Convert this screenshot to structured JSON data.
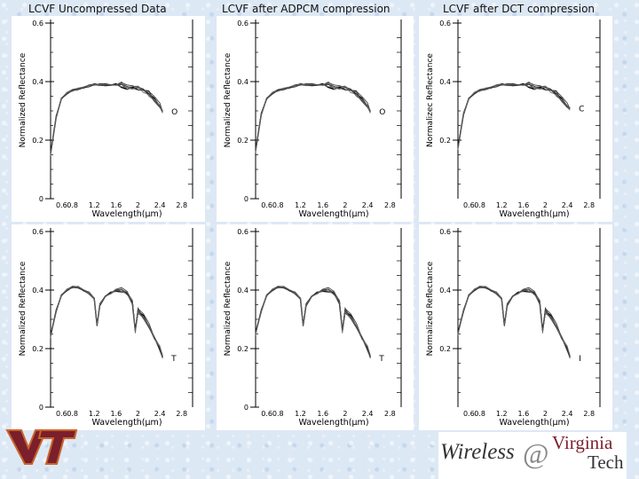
{
  "titles": {
    "col1": "LCVF Uncompressed Data",
    "col2": "LCVF after ADPCM compression",
    "col3": "LCVF after DCT compression"
  },
  "branding": {
    "left_logo": "VT",
    "right_logo": {
      "wireless": "Wireless",
      "at": "@",
      "virginia": "Virginia",
      "tech": "Tech"
    }
  },
  "colors": {
    "logo_maroon": "#7a1f2b",
    "logo_orange": "#c8642a",
    "curve": "#000000"
  },
  "chart_data": [
    {
      "type": "line",
      "name": "c1-top",
      "title": "LCVF Uncompressed Data",
      "xlabel": "Wavelength(μm)",
      "ylabel": "Normalized Reflectance",
      "xlim": [
        0.4,
        3.0
      ],
      "ylim": [
        0,
        0.6
      ],
      "grid": false,
      "xticks": [
        "0.8",
        "1.2",
        "1.6",
        "2",
        "2.4",
        "2.8"
      ],
      "yticks": [
        "0",
        "0.2",
        "0.4",
        "0.6"
      ],
      "extra_xticks": [
        "0.6"
      ],
      "annotation": "O",
      "shape": "flat",
      "series": [
        {
          "x": [
            0.4,
            0.5,
            0.6,
            0.7,
            0.8,
            0.9,
            1.0,
            1.1,
            1.2,
            1.3,
            1.4,
            1.5,
            1.6,
            1.7,
            1.8,
            1.9,
            2.0,
            2.1,
            2.2,
            2.3,
            2.4,
            2.45
          ],
          "y": [
            0.15,
            0.28,
            0.34,
            0.36,
            0.37,
            0.375,
            0.38,
            0.385,
            0.39,
            0.39,
            0.39,
            0.39,
            0.39,
            0.39,
            0.38,
            0.38,
            0.38,
            0.37,
            0.36,
            0.34,
            0.32,
            0.3
          ]
        }
      ]
    },
    {
      "type": "line",
      "name": "c2-top",
      "title": "LCVF after ADPCM compression",
      "xlabel": "Wavelength(μm)",
      "ylabel": "Normalized Reflectance",
      "xlim": [
        0.4,
        3.0
      ],
      "ylim": [
        0,
        0.6
      ],
      "grid": false,
      "xticks": [
        "0.8",
        "1.2",
        "1.6",
        "2",
        "2.4",
        "2.8"
      ],
      "yticks": [
        "0",
        "0.2",
        "0.4",
        "0.6"
      ],
      "extra_xticks": [
        "0.6"
      ],
      "annotation": "O",
      "shape": "flat",
      "series": [
        {
          "x": [
            0.4,
            0.5,
            0.6,
            0.7,
            0.8,
            0.9,
            1.0,
            1.1,
            1.2,
            1.3,
            1.4,
            1.5,
            1.6,
            1.7,
            1.8,
            1.9,
            2.0,
            2.1,
            2.2,
            2.3,
            2.4,
            2.45
          ],
          "y": [
            0.16,
            0.29,
            0.34,
            0.36,
            0.37,
            0.375,
            0.38,
            0.385,
            0.39,
            0.39,
            0.39,
            0.39,
            0.39,
            0.39,
            0.38,
            0.38,
            0.38,
            0.37,
            0.36,
            0.34,
            0.32,
            0.3
          ]
        }
      ]
    },
    {
      "type": "line",
      "name": "c3-top",
      "title": "LCVF after DCT compression",
      "xlabel": "Wavelength(μm)",
      "ylabel": "Normalizec Reflectance",
      "xlim": [
        0.4,
        3.0
      ],
      "ylim": [
        0,
        0.6
      ],
      "grid": false,
      "xticks": [
        "0.8",
        "1.2",
        "1.6",
        "2",
        "2.4",
        "2.8"
      ],
      "yticks": [
        "0.2",
        "0.4",
        "0.6"
      ],
      "extra_xticks": [
        "0.6"
      ],
      "annotation": "C",
      "shape": "flat",
      "series": [
        {
          "x": [
            0.4,
            0.5,
            0.6,
            0.7,
            0.8,
            0.9,
            1.0,
            1.1,
            1.2,
            1.3,
            1.4,
            1.5,
            1.6,
            1.7,
            1.8,
            1.9,
            2.0,
            2.1,
            2.2,
            2.3,
            2.4,
            2.45
          ],
          "y": [
            0.17,
            0.29,
            0.34,
            0.36,
            0.37,
            0.375,
            0.38,
            0.385,
            0.39,
            0.39,
            0.39,
            0.39,
            0.39,
            0.39,
            0.38,
            0.38,
            0.38,
            0.37,
            0.36,
            0.34,
            0.32,
            0.31
          ]
        }
      ]
    },
    {
      "type": "line",
      "name": "c1-bottom",
      "xlabel": "Wavelength(μm)",
      "ylabel": "Normalized Reflectance",
      "xlim": [
        0.4,
        3.0
      ],
      "ylim": [
        0,
        0.6
      ],
      "grid": false,
      "xticks": [
        "0.8",
        "1.2",
        "1.6",
        "2",
        "2.4",
        "2.8"
      ],
      "yticks": [
        "0",
        "0.2",
        "0.4",
        "0.6"
      ],
      "extra_xticks": [
        "0.6"
      ],
      "annotation": "T",
      "shape": "bands",
      "series": [
        {
          "x": [
            0.4,
            0.5,
            0.6,
            0.7,
            0.8,
            0.9,
            1.0,
            1.1,
            1.2,
            1.25,
            1.3,
            1.4,
            1.5,
            1.6,
            1.7,
            1.8,
            1.9,
            1.95,
            2.0,
            2.1,
            2.2,
            2.3,
            2.4,
            2.45
          ],
          "y": [
            0.24,
            0.33,
            0.38,
            0.4,
            0.41,
            0.41,
            0.4,
            0.39,
            0.37,
            0.28,
            0.35,
            0.38,
            0.39,
            0.4,
            0.4,
            0.39,
            0.36,
            0.26,
            0.33,
            0.31,
            0.28,
            0.24,
            0.2,
            0.17
          ]
        }
      ]
    },
    {
      "type": "line",
      "name": "c2-bottom",
      "xlabel": "Wavelength(μm)",
      "ylabel": "Normalized Reflectance",
      "xlim": [
        0.4,
        3.0
      ],
      "ylim": [
        0,
        0.6
      ],
      "grid": false,
      "xticks": [
        "0.8",
        "1.2",
        "1.6",
        "2",
        "2.4",
        "2.8"
      ],
      "yticks": [
        "0",
        "0.2",
        "0.4",
        "0.6"
      ],
      "extra_xticks": [
        "0.6"
      ],
      "annotation": "T",
      "shape": "bands",
      "series": [
        {
          "x": [
            0.4,
            0.5,
            0.6,
            0.7,
            0.8,
            0.9,
            1.0,
            1.1,
            1.2,
            1.25,
            1.3,
            1.4,
            1.5,
            1.6,
            1.7,
            1.8,
            1.9,
            1.95,
            2.0,
            2.1,
            2.2,
            2.3,
            2.4,
            2.45
          ],
          "y": [
            0.25,
            0.33,
            0.38,
            0.4,
            0.41,
            0.41,
            0.4,
            0.39,
            0.37,
            0.28,
            0.35,
            0.38,
            0.39,
            0.4,
            0.4,
            0.39,
            0.36,
            0.26,
            0.33,
            0.31,
            0.28,
            0.24,
            0.2,
            0.17
          ]
        }
      ]
    },
    {
      "type": "line",
      "name": "c3-bottom",
      "xlabel": "Wavelength(μm)",
      "ylabel": "Normalized Reflectance",
      "xlim": [
        0.4,
        3.0
      ],
      "ylim": [
        0,
        0.6
      ],
      "grid": false,
      "xticks": [
        "0.8",
        "1.2",
        "1.6",
        "2",
        "2.4",
        "2.8"
      ],
      "yticks": [
        "0.2",
        "0.4",
        "0.6"
      ],
      "extra_xticks": [
        "0.6"
      ],
      "annotation": "I",
      "shape": "bands",
      "series": [
        {
          "x": [
            0.4,
            0.5,
            0.6,
            0.7,
            0.8,
            0.9,
            1.0,
            1.1,
            1.2,
            1.25,
            1.3,
            1.4,
            1.5,
            1.6,
            1.7,
            1.8,
            1.9,
            1.95,
            2.0,
            2.1,
            2.2,
            2.3,
            2.4,
            2.45
          ],
          "y": [
            0.25,
            0.33,
            0.38,
            0.4,
            0.41,
            0.41,
            0.4,
            0.39,
            0.37,
            0.28,
            0.35,
            0.38,
            0.39,
            0.4,
            0.4,
            0.39,
            0.36,
            0.26,
            0.33,
            0.31,
            0.28,
            0.24,
            0.2,
            0.17
          ]
        }
      ]
    }
  ]
}
